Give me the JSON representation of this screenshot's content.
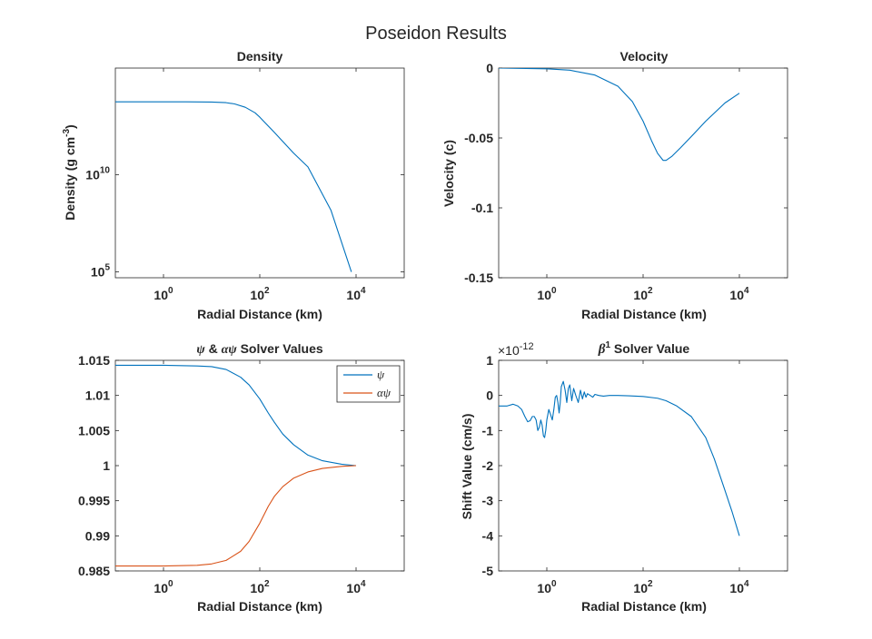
{
  "figure": {
    "title": "Poseidon Results"
  },
  "chart_data": [
    {
      "id": "density",
      "type": "line",
      "title": "Density",
      "xlabel": "Radial Distance (km)",
      "ylabel_main": "Density (g cm",
      "ylabel_sup": "-3",
      "ylabel_close": ")",
      "xscale": "log",
      "yscale": "log",
      "xlim": [
        0.1,
        100000
      ],
      "ylim": [
        50000,
        3000000000000000
      ],
      "xticks": [
        {
          "value": 1,
          "base": "10",
          "exp": "0"
        },
        {
          "value": 100,
          "base": "10",
          "exp": "2"
        },
        {
          "value": 10000,
          "base": "10",
          "exp": "4"
        }
      ],
      "yticks": [
        {
          "value": 100000,
          "base": "10",
          "exp": "5"
        },
        {
          "value": 10000000000,
          "base": "10",
          "exp": "10"
        }
      ],
      "series": [
        {
          "color": "#0072BD",
          "x": [
            0.1,
            0.5,
            1,
            3,
            10,
            20,
            30,
            50,
            80,
            100,
            200,
            500,
            1000,
            3000,
            8000
          ],
          "y": [
            55000000000000.0,
            55000000000000.0,
            55000000000000.0,
            55000000000000.0,
            54000000000000.0,
            50000000000000.0,
            43000000000000.0,
            29000000000000.0,
            15000000000000.0,
            9000000000000.0,
            1500000000000.0,
            130000000000.0,
            25000000000.0,
            150000000.0,
            100000.0
          ]
        }
      ]
    },
    {
      "id": "velocity",
      "type": "line",
      "title": "Velocity",
      "xlabel": "Radial Distance (km)",
      "ylabel": "Velocity (c)",
      "xscale": "log",
      "yscale": "linear",
      "xlim": [
        0.1,
        100000
      ],
      "ylim": [
        -0.15,
        0
      ],
      "xticks": [
        {
          "value": 1,
          "base": "10",
          "exp": "0"
        },
        {
          "value": 100,
          "base": "10",
          "exp": "2"
        },
        {
          "value": 10000,
          "base": "10",
          "exp": "4"
        }
      ],
      "yticks": [
        {
          "value": 0,
          "label": "0"
        },
        {
          "value": -0.05,
          "label": "-0.05"
        },
        {
          "value": -0.1,
          "label": "-0.1"
        },
        {
          "value": -0.15,
          "label": "-0.15"
        }
      ],
      "series": [
        {
          "color": "#0072BD",
          "x": [
            0.1,
            1,
            3,
            10,
            30,
            60,
            100,
            150,
            200,
            260,
            300,
            400,
            600,
            1000,
            2000,
            5000,
            10000
          ],
          "y": [
            0,
            -0.0005,
            -0.0015,
            -0.005,
            -0.013,
            -0.024,
            -0.038,
            -0.052,
            -0.061,
            -0.066,
            -0.066,
            -0.063,
            -0.057,
            -0.049,
            -0.038,
            -0.025,
            -0.018
          ]
        }
      ]
    },
    {
      "id": "solver",
      "type": "line",
      "title_sym1": "ψ",
      "title_amp": " & ",
      "title_sym2": "αψ",
      "title_rest": " Solver Values",
      "xlabel": "Radial Distance (km)",
      "ylabel": "",
      "xscale": "log",
      "yscale": "linear",
      "xlim": [
        0.1,
        100000
      ],
      "ylim": [
        0.985,
        1.015
      ],
      "legend": "top-right",
      "xticks": [
        {
          "value": 1,
          "base": "10",
          "exp": "0"
        },
        {
          "value": 100,
          "base": "10",
          "exp": "2"
        },
        {
          "value": 10000,
          "base": "10",
          "exp": "4"
        }
      ],
      "yticks": [
        {
          "value": 1.015,
          "label": "1.015"
        },
        {
          "value": 1.01,
          "label": "1.01"
        },
        {
          "value": 1.005,
          "label": "1.005"
        },
        {
          "value": 1,
          "label": "1"
        },
        {
          "value": 0.995,
          "label": "0.995"
        },
        {
          "value": 0.99,
          "label": "0.99"
        },
        {
          "value": 0.985,
          "label": "0.985"
        }
      ],
      "series": [
        {
          "name": "ψ",
          "color": "#0072BD",
          "x": [
            0.1,
            1,
            5,
            10,
            20,
            40,
            60,
            100,
            150,
            200,
            300,
            500,
            1000,
            2000,
            5000,
            10000
          ],
          "y": [
            1.0143,
            1.0143,
            1.0142,
            1.0141,
            1.0137,
            1.0126,
            1.0115,
            1.0095,
            1.0075,
            1.0062,
            1.0045,
            1.003,
            1.0015,
            1.0007,
            1.0002,
            1.0
          ]
        },
        {
          "name": "αψ",
          "color": "#D95319",
          "x": [
            0.1,
            1,
            5,
            10,
            20,
            40,
            60,
            100,
            150,
            200,
            300,
            500,
            1000,
            2000,
            5000,
            10000
          ],
          "y": [
            0.9857,
            0.9857,
            0.9858,
            0.986,
            0.9865,
            0.9878,
            0.9892,
            0.9918,
            0.9942,
            0.9956,
            0.997,
            0.9982,
            0.9991,
            0.9996,
            0.9999,
            1.0
          ]
        }
      ]
    },
    {
      "id": "shift",
      "type": "line",
      "title_sym": "β",
      "title_sup": "1",
      "title_rest": " Solver Value",
      "xlabel": "Radial Distance (km)",
      "ylabel": "Shift Value (cm/s)",
      "xscale": "log",
      "yscale": "linear",
      "multiplier_base": "×10",
      "multiplier_exp": "-12",
      "xlim": [
        0.1,
        100000
      ],
      "ylim": [
        -5,
        1
      ],
      "xticks": [
        {
          "value": 1,
          "base": "10",
          "exp": "0"
        },
        {
          "value": 100,
          "base": "10",
          "exp": "2"
        },
        {
          "value": 10000,
          "base": "10",
          "exp": "4"
        }
      ],
      "yticks": [
        {
          "value": 1,
          "label": "1"
        },
        {
          "value": 0,
          "label": "0"
        },
        {
          "value": -1,
          "label": "-1"
        },
        {
          "value": -2,
          "label": "-2"
        },
        {
          "value": -3,
          "label": "-3"
        },
        {
          "value": -4,
          "label": "-4"
        },
        {
          "value": -5,
          "label": "-5"
        }
      ],
      "series": [
        {
          "color": "#0072BD",
          "x": [
            0.1,
            0.15,
            0.2,
            0.25,
            0.3,
            0.35,
            0.4,
            0.45,
            0.5,
            0.55,
            0.6,
            0.65,
            0.7,
            0.75,
            0.8,
            0.85,
            0.9,
            0.95,
            1.0,
            1.1,
            1.2,
            1.3,
            1.4,
            1.5,
            1.6,
            1.7,
            1.8,
            1.9,
            2.0,
            2.2,
            2.4,
            2.6,
            2.8,
            3.0,
            3.3,
            3.6,
            4.0,
            4.5,
            5.0,
            5.5,
            6.0,
            6.5,
            7.0,
            8.0,
            9.0,
            10,
            12,
            15,
            20,
            30,
            50,
            100,
            200,
            300,
            500,
            1000,
            2000,
            3000,
            5000,
            7000,
            10000
          ],
          "y": [
            -0.3,
            -0.3,
            -0.25,
            -0.3,
            -0.4,
            -0.6,
            -0.75,
            -0.72,
            -0.6,
            -0.6,
            -0.7,
            -1.0,
            -0.9,
            -0.7,
            -0.85,
            -1.15,
            -1.2,
            -1.0,
            -0.7,
            -0.4,
            -0.55,
            -0.7,
            -0.4,
            -0.05,
            0.0,
            -0.2,
            -0.5,
            -0.2,
            0.25,
            0.4,
            0.15,
            -0.2,
            0.2,
            0.3,
            -0.15,
            0.2,
            0.0,
            -0.2,
            0.15,
            -0.1,
            0.1,
            -0.05,
            0.05,
            0.0,
            -0.05,
            0.03,
            0.0,
            -0.02,
            0.0,
            0.0,
            -0.01,
            -0.03,
            -0.08,
            -0.15,
            -0.3,
            -0.6,
            -1.2,
            -1.8,
            -2.7,
            -3.3,
            -4.0
          ]
        }
      ]
    }
  ]
}
